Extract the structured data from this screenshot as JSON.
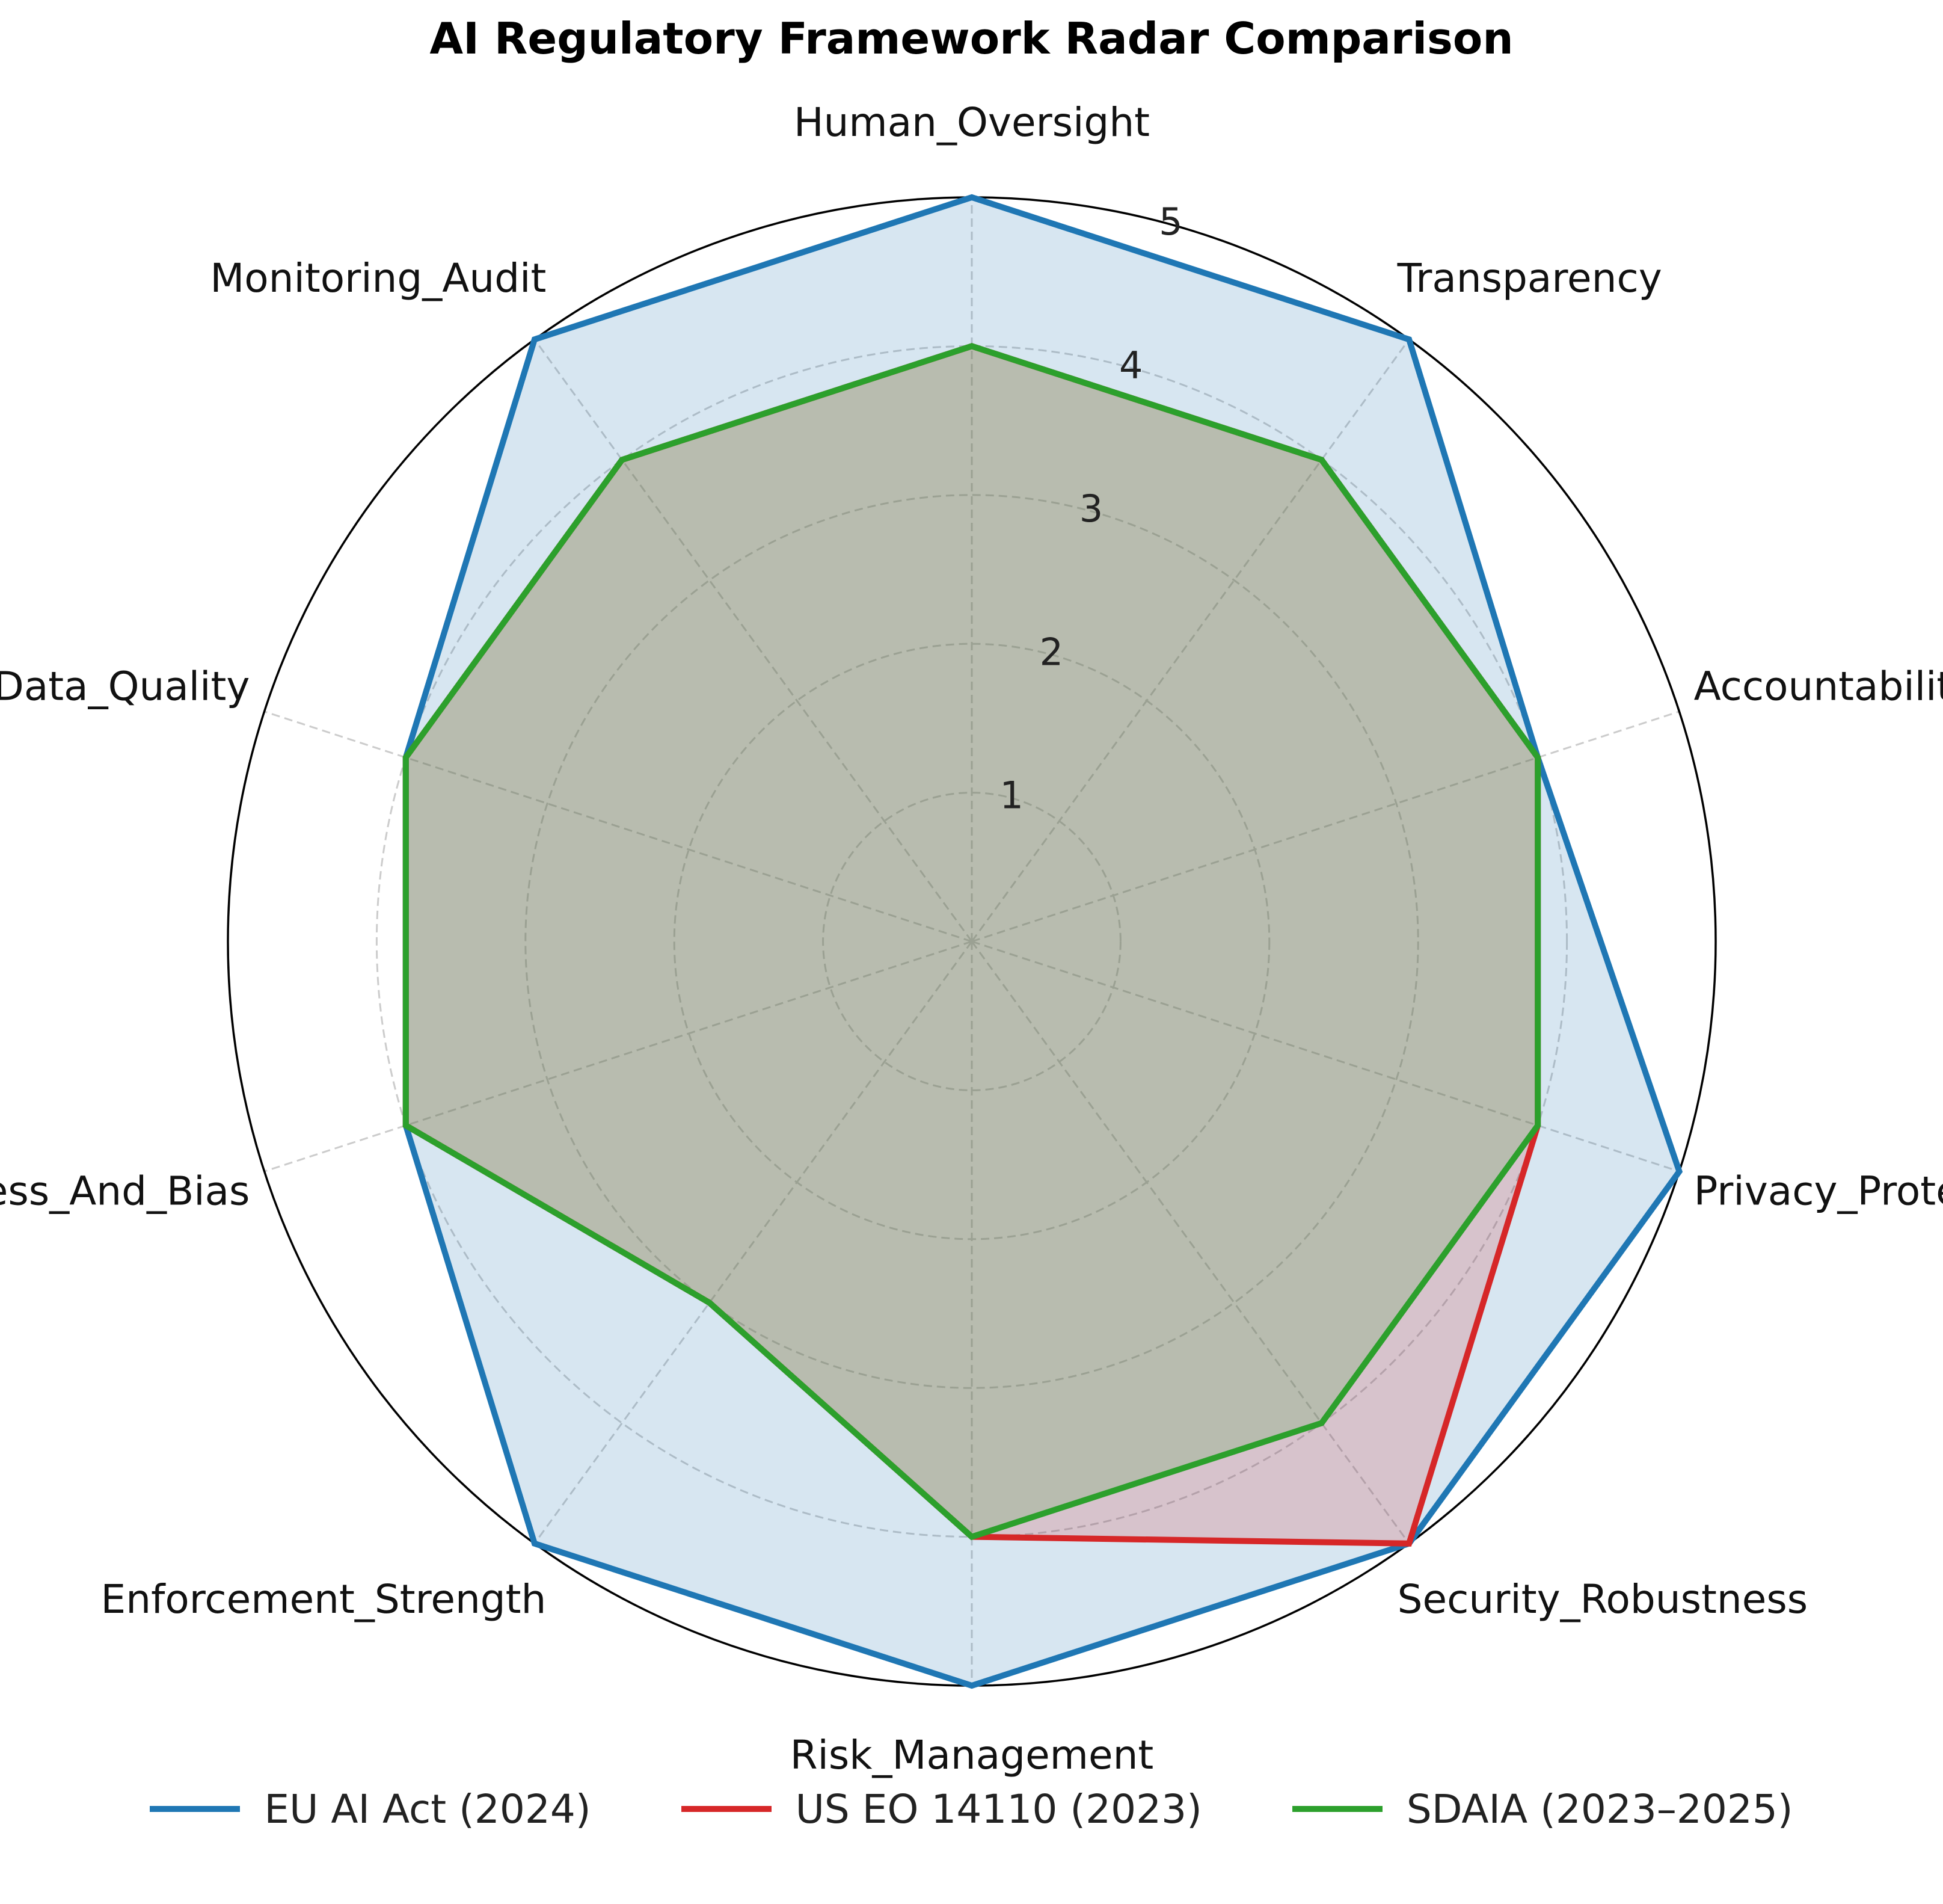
{
  "chart_data": {
    "type": "radar",
    "title": "AI Regulatory Framework Radar Comparison",
    "categories": [
      "Human_Oversight",
      "Transparency",
      "Accountability",
      "Privacy_Protection",
      "Security_Robustness",
      "Risk_Management",
      "Enforcement_Strength",
      "Fairness_And_Bias",
      "Data_Quality",
      "Monitoring_Audit"
    ],
    "r_ticks": [
      "1",
      "2",
      "3",
      "4",
      "5"
    ],
    "rlim": [
      0,
      5
    ],
    "grid": true,
    "legend_position": "bottom",
    "series": [
      {
        "name": "EU AI Act (2024)",
        "color": "#1f77b4",
        "values": [
          5,
          5,
          4,
          5,
          5,
          5,
          5,
          4,
          4,
          5
        ]
      },
      {
        "name": "US EO 14110 (2023)",
        "color": "#d62728",
        "values": [
          4,
          4,
          4,
          4,
          5,
          4,
          3,
          4,
          4,
          4
        ]
      },
      {
        "name": "SDAIA (2023–2025)",
        "color": "#2ca02c",
        "values": [
          4,
          4,
          4,
          4,
          4,
          4,
          3,
          4,
          4,
          4
        ]
      }
    ]
  }
}
